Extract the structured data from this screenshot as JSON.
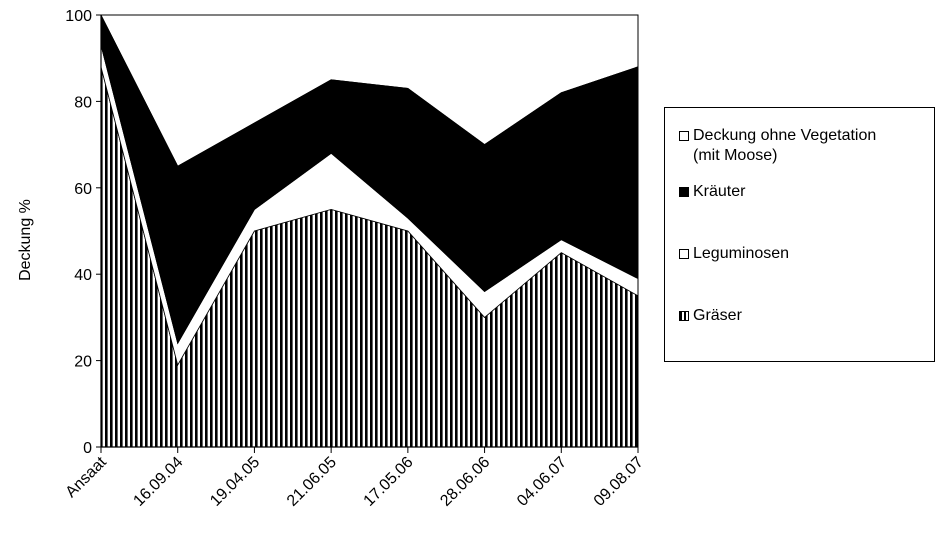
{
  "chart_data": {
    "type": "area",
    "stacked": true,
    "ylabel": "Deckung %",
    "xlabel": "",
    "ylim": [
      0,
      100
    ],
    "yticks": [
      0,
      20,
      40,
      60,
      80,
      100
    ],
    "categories": [
      "Ansaat",
      "16.09.04",
      "19.04.05",
      "21.06.05",
      "17.05.06",
      "28.06.06",
      "04.06.07",
      "09.08.07"
    ],
    "series": [
      {
        "name": "Gräser",
        "pattern": "vertical-stripes",
        "values": [
          88,
          19,
          50,
          55,
          50,
          30,
          45,
          35
        ]
      },
      {
        "name": "Leguminosen",
        "pattern": "white",
        "values": [
          5,
          5,
          5,
          13,
          3,
          6,
          3,
          4
        ]
      },
      {
        "name": "Kräuter",
        "pattern": "black",
        "values": [
          7,
          41,
          20,
          17,
          30,
          34,
          34,
          49
        ]
      },
      {
        "name": "Deckung ohne Vegetation\n(mit Moose)",
        "pattern": "white",
        "values": [
          0,
          0,
          0,
          0,
          0,
          0,
          0,
          0
        ]
      }
    ],
    "legend_position": "right",
    "grid": false
  },
  "legend": {
    "items": [
      {
        "label": "Deckung ohne Vegetation\n(mit Moose)",
        "swatch": "white"
      },
      {
        "label": "Kräuter",
        "swatch": "solid"
      },
      {
        "label": "Leguminosen",
        "swatch": "white"
      },
      {
        "label": "Gräser",
        "swatch": "stripe"
      }
    ]
  },
  "colors": {
    "ink": "#000000",
    "paper": "#ffffff"
  }
}
